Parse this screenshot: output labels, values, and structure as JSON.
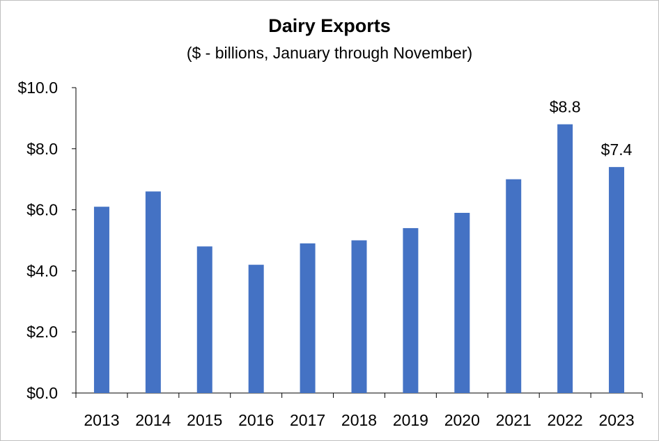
{
  "chart_data": {
    "type": "bar",
    "title": "Dairy Exports",
    "subtitle": "($ - billions, January through November)",
    "xlabel": "",
    "ylabel": "",
    "categories": [
      "2013",
      "2014",
      "2015",
      "2016",
      "2017",
      "2018",
      "2019",
      "2020",
      "2021",
      "2022",
      "2023"
    ],
    "values": [
      6.1,
      6.6,
      4.8,
      4.2,
      4.9,
      5.0,
      5.4,
      5.9,
      7.0,
      8.8,
      7.4
    ],
    "data_labels": {
      "9": "$8.8",
      "10": "$7.4"
    },
    "ylim": [
      0,
      10
    ],
    "yticks": [
      0,
      2,
      4,
      6,
      8,
      10
    ],
    "ytick_labels": [
      "$0.0",
      "$2.0",
      "$4.0",
      "$6.0",
      "$8.0",
      "$10.0"
    ],
    "grid": false,
    "legend": "none",
    "bar_color": "#4472C4"
  }
}
